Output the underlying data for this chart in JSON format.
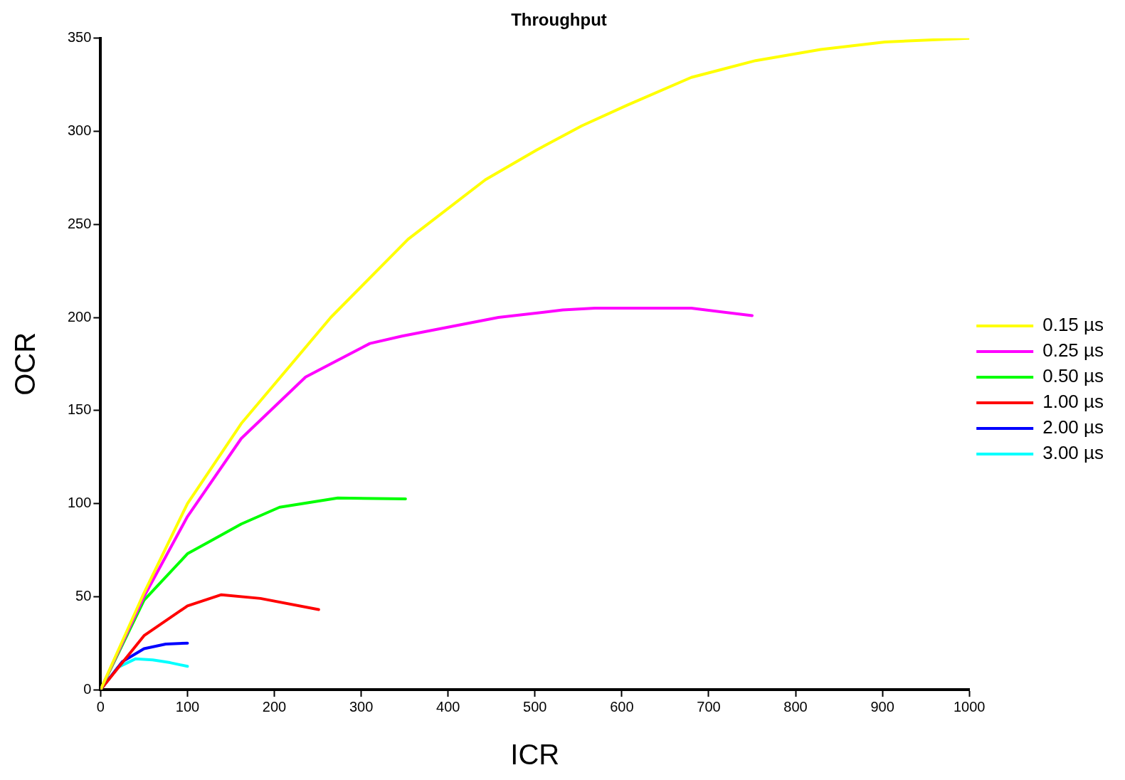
{
  "chart_data": {
    "type": "line",
    "title": "Throughput",
    "xlabel": "ICR",
    "ylabel": "OCR",
    "xlim": [
      0,
      1000
    ],
    "xticks": [
      0,
      100,
      200,
      300,
      400,
      500,
      600,
      700,
      800,
      900,
      1000
    ],
    "ylim": [
      0,
      350
    ],
    "yticks": [
      0,
      50,
      100,
      150,
      200,
      250,
      300,
      350
    ],
    "grid": false,
    "legend": "right",
    "marker": "none",
    "line_style": "solid",
    "series": [
      {
        "name": "0.15 µs",
        "color": "#ffff00",
        "x": [
          0,
          50,
          100,
          162,
          265,
          354,
          443,
          502,
          554,
          606,
          680,
          754,
          829,
          903,
          1000
        ],
        "values": [
          0,
          52,
          100,
          143,
          200,
          242,
          274,
          290,
          303,
          314,
          329,
          338,
          344,
          348,
          350
        ]
      },
      {
        "name": "0.25 µs",
        "color": "#ff00ff",
        "x": [
          0,
          50,
          100,
          162,
          236,
          310,
          347,
          458,
          532,
          569,
          680,
          750
        ],
        "values": [
          0,
          50,
          93,
          135,
          168,
          186,
          190,
          200,
          204,
          205,
          205,
          201
        ]
      },
      {
        "name": "0.50 µs",
        "color": "#00ff00",
        "x": [
          0,
          50,
          100,
          162,
          206,
          273,
          351
        ],
        "values": [
          0,
          48,
          73,
          89,
          98,
          103,
          102.5
        ]
      },
      {
        "name": "1.00 µs",
        "color": "#ff0000",
        "x": [
          0,
          50,
          100,
          139,
          184,
          251
        ],
        "values": [
          0,
          29,
          45,
          51,
          49,
          43
        ]
      },
      {
        "name": "2.00 µs",
        "color": "#0000ff",
        "x": [
          0,
          25,
          50,
          75,
          100
        ],
        "values": [
          0,
          15,
          22,
          24.5,
          25
        ]
      },
      {
        "name": "3.00 µs",
        "color": "#00ffff",
        "x": [
          0,
          20,
          40,
          60,
          80,
          100
        ],
        "values": [
          0,
          12,
          16.5,
          16,
          14.5,
          12.5
        ]
      }
    ]
  }
}
